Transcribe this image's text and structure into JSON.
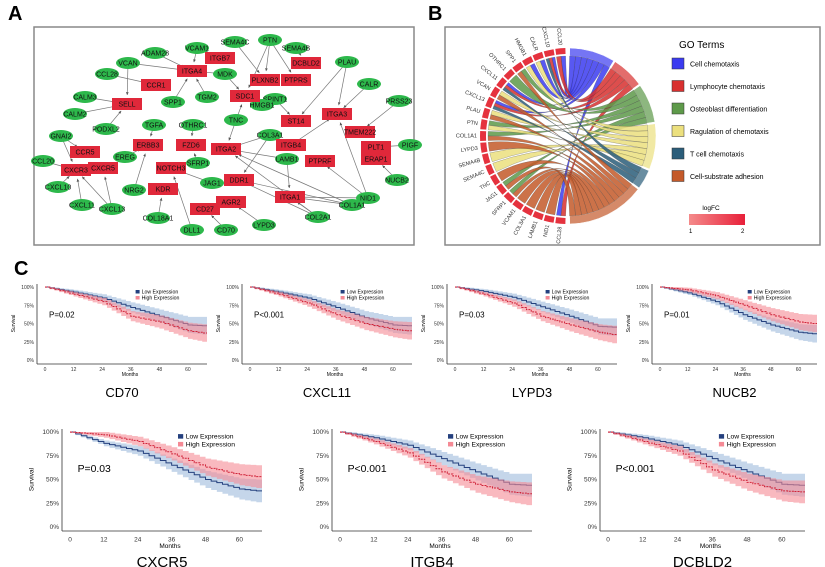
{
  "panel_labels": [
    "A",
    "B",
    "C"
  ],
  "network": {
    "colors": {
      "receptor": "#e0283a",
      "ligand": "#2db84b"
    },
    "receptors": [
      "ITGB7",
      "ITGA4",
      "DCBLD2",
      "PLXNB2",
      "PTPRS",
      "CCR1",
      "SDC1",
      "SELL",
      "ST14",
      "ITGA3",
      "TMEM222",
      "ERBB3",
      "FZD6",
      "ITGA2",
      "ITGB4",
      "PLT1",
      "CCR5",
      "ERAP1",
      "PTPRF",
      "CXCR3",
      "CXCR5",
      "NOTCH3",
      "DDR1",
      "KDR",
      "ITGA1",
      "AGR2",
      "CD27"
    ],
    "ligands": [
      "PTN",
      "SEMA4C",
      "SEMA4B",
      "VCAM1",
      "ADAM28",
      "PLAU",
      "VCAN",
      "CCL28",
      "MDK",
      "SPP1",
      "TGM2",
      "CALR",
      "SPINT1",
      "HMGB1",
      "CALM3",
      "CALM2",
      "PRSS23",
      "TNC",
      "PODXL2",
      "TGFA",
      "OTHRC1",
      "COL3A1",
      "PIGF",
      "GNAI2",
      "EREG",
      "LAMB1",
      "CCL20",
      "SFRP1",
      "JAG1",
      "NUCB2",
      "CXCL10",
      "NRG2",
      "NID1",
      "COL1A1",
      "CXCL11",
      "CXCL13",
      "COL2A1",
      "COL18A1",
      "LYPD3",
      "DLL1",
      "CD70"
    ],
    "edges": [
      [
        "ADAM28",
        "ITGA4"
      ],
      [
        "VCAM1",
        "ITGA4"
      ],
      [
        "ITGB7",
        "VCAM1"
      ],
      [
        "VCAN",
        "ITGA4"
      ],
      [
        "VCAN",
        "SELL"
      ],
      [
        "CCL28",
        "CCR1"
      ],
      [
        "MDK",
        "ITGA4"
      ],
      [
        "SPP1",
        "ITGA4"
      ],
      [
        "TGM2",
        "ITGA4"
      ],
      [
        "MDK",
        "SDC1"
      ],
      [
        "PTN",
        "SDC1"
      ],
      [
        "PTN",
        "PLXNB2"
      ],
      [
        "PTN",
        "PTPRS"
      ],
      [
        "SEMA4C",
        "PLXNB2"
      ],
      [
        "SEMA4B",
        "DCBLD2"
      ],
      [
        "HMGB1",
        "SDC1"
      ],
      [
        "TNC",
        "SDC1"
      ],
      [
        "SPINT1",
        "ST14"
      ],
      [
        "PLAU",
        "ST14"
      ],
      [
        "PLAU",
        "ITGA3"
      ],
      [
        "CALR",
        "ITGA3"
      ],
      [
        "PRSS23",
        "TMEM222"
      ],
      [
        "CALM3",
        "SELL"
      ],
      [
        "CALM2",
        "SELL"
      ],
      [
        "PODXL2",
        "SELL"
      ],
      [
        "TGFA",
        "ERBB3"
      ],
      [
        "EREG",
        "ERBB3"
      ],
      [
        "NRG2",
        "ERBB3"
      ],
      [
        "OTHRC1",
        "FZD6"
      ],
      [
        "SFRP1",
        "FZD6"
      ],
      [
        "TNC",
        "ITGA2"
      ],
      [
        "COL3A1",
        "ITGA2"
      ],
      [
        "COL3A1",
        "DDR1"
      ],
      [
        "LAMB1",
        "ITGA2"
      ],
      [
        "LAMB1",
        "ITGB4"
      ],
      [
        "LAMB1",
        "ITGA1"
      ],
      [
        "ITGB4",
        "ITGA3"
      ],
      [
        "NID1",
        "ITGA3"
      ],
      [
        "NID1",
        "PTPRF"
      ],
      [
        "NID1",
        "ITGA1"
      ],
      [
        "PIGF",
        "PLT1"
      ],
      [
        "NUCB2",
        "ERAP1"
      ],
      [
        "GNAI2",
        "CCR5"
      ],
      [
        "GNAI2",
        "CXCR3"
      ],
      [
        "CCL20",
        "CXCR3"
      ],
      [
        "CXCL10",
        "CXCR3"
      ],
      [
        "CXCL11",
        "CXCR3"
      ],
      [
        "CXCL13",
        "CXCR3"
      ],
      [
        "CXCL13",
        "CXCR5"
      ],
      [
        "JAG1",
        "NOTCH3"
      ],
      [
        "DLL1",
        "NOTCH3"
      ],
      [
        "COL18A1",
        "KDR"
      ],
      [
        "CD70",
        "CD27"
      ],
      [
        "LYPD3",
        "AGR2"
      ],
      [
        "COL1A1",
        "ITGA2"
      ],
      [
        "COL1A1",
        "ITGA1"
      ],
      [
        "COL1A1",
        "DDR1"
      ],
      [
        "COL2A1",
        "ITGA2"
      ],
      [
        "COL2A1",
        "ITGA1"
      ],
      [
        "COL2A1",
        "DDR1"
      ]
    ]
  },
  "chord": {
    "genes": [
      "CCL20",
      "CXCL10",
      "CALR",
      "HMGB1",
      "SPP1",
      "OTHRC1",
      "CXCL11",
      "VCAN",
      "CXCL13",
      "PLAU",
      "PTN",
      "COL1A1",
      "LYPD3",
      "SEMA4B",
      "SEMA4C",
      "TNC",
      "JAG1",
      "SFRP1",
      "VCAM1",
      "COL3A1",
      "LAMB1",
      "NID1",
      "CCL28"
    ],
    "legend_title": "GO Terms",
    "terms": [
      {
        "name": "Cell chemotaxis",
        "color": "#3b3bf0",
        "genes": [
          "CCL20",
          "CXCL10",
          "CALR",
          "HMGB1",
          "CXCL11",
          "CXCL13",
          "CCL28"
        ]
      },
      {
        "name": "Lymphocyte chemotaxis",
        "color": "#d8302f",
        "genes": [
          "CCL20",
          "CXCL10",
          "CXCL11",
          "CXCL13",
          "CCL28"
        ]
      },
      {
        "name": "Osteoblast differentiation",
        "color": "#5e9a4a",
        "genes": [
          "SPP1",
          "OTHRC1",
          "PTN",
          "COL1A1",
          "JAG1",
          "SFRP1"
        ]
      },
      {
        "name": "Ragulation of chemotaxis",
        "color": "#ece07e",
        "genes": [
          "CALR",
          "HMGB1",
          "VCAN",
          "PLAU",
          "SEMA4B",
          "SEMA4C",
          "PTN"
        ]
      },
      {
        "name": "T cell chemotaxis",
        "color": "#2b5d7a",
        "genes": [
          "CXCL10",
          "CXCL11",
          "CXCL13"
        ]
      },
      {
        "name": "Cell-substrate adhesion",
        "color": "#c45a2a",
        "genes": [
          "SPP1",
          "VCAN",
          "PLAU",
          "COL1A1",
          "LYPD3",
          "TNC",
          "SFRP1",
          "VCAM1",
          "COL3A1",
          "LAMB1",
          "NID1",
          "JAG1"
        ]
      }
    ],
    "logfc": {
      "title": "logFC",
      "min": "1",
      "max": "2",
      "low_color": "#f48a8a",
      "high_color": "#e8203a"
    }
  },
  "km": {
    "y_label": "Survival",
    "x_label": "Months",
    "y_ticks": [
      "0%",
      "25%",
      "50%",
      "75%",
      "100%"
    ],
    "x_ticks": [
      "0",
      "12",
      "24",
      "36",
      "48",
      "60"
    ],
    "legend": [
      "Low Expression",
      "High Expression"
    ],
    "colors": {
      "low": "#24407e",
      "low_band": "#9ebbdc",
      "high": "#d0243a",
      "high_band": "#f58a95"
    },
    "months": [
      0,
      12,
      24,
      36,
      48,
      60,
      66
    ]
  },
  "chart_data": [
    {
      "type": "line",
      "title": "CD70",
      "p_value": "P=0.02",
      "series": [
        {
          "name": "Low Expression",
          "values": [
            1,
            0.93,
            0.85,
            0.72,
            0.6,
            0.48,
            0.47
          ]
        },
        {
          "name": "High Expression",
          "values": [
            1,
            0.9,
            0.8,
            0.6,
            0.52,
            0.4,
            0.37
          ]
        }
      ]
    },
    {
      "type": "line",
      "title": "CXCL11",
      "p_value": "P<0.001",
      "series": [
        {
          "name": "Low Expression",
          "values": [
            1,
            0.93,
            0.85,
            0.72,
            0.58,
            0.48,
            0.47
          ]
        },
        {
          "name": "High Expression",
          "values": [
            1,
            0.9,
            0.78,
            0.62,
            0.5,
            0.42,
            0.4
          ]
        }
      ]
    },
    {
      "type": "line",
      "title": "LYPD3",
      "p_value": "P=0.03",
      "series": [
        {
          "name": "Low Expression",
          "values": [
            1,
            0.94,
            0.86,
            0.73,
            0.6,
            0.46,
            0.45
          ]
        },
        {
          "name": "High Expression",
          "values": [
            1,
            0.9,
            0.78,
            0.6,
            0.48,
            0.38,
            0.35
          ]
        }
      ]
    },
    {
      "type": "line",
      "title": "NUCB2",
      "p_value": "P=0.01",
      "series": [
        {
          "name": "Low Expression",
          "values": [
            1,
            0.92,
            0.8,
            0.62,
            0.48,
            0.38,
            0.36
          ]
        },
        {
          "name": "High Expression",
          "values": [
            1,
            0.96,
            0.88,
            0.75,
            0.62,
            0.52,
            0.5
          ]
        }
      ]
    },
    {
      "type": "line",
      "title": "CXCR5",
      "p_value": "P=0.03",
      "series": [
        {
          "name": "Low Expression",
          "values": [
            1,
            0.88,
            0.8,
            0.65,
            0.5,
            0.4,
            0.38
          ]
        },
        {
          "name": "High Expression",
          "values": [
            1,
            0.97,
            0.9,
            0.77,
            0.63,
            0.55,
            0.53
          ]
        }
      ]
    },
    {
      "type": "line",
      "title": "ITGB4",
      "p_value": "P<0.001",
      "series": [
        {
          "name": "Low Expression",
          "values": [
            1,
            0.94,
            0.86,
            0.72,
            0.58,
            0.45,
            0.44
          ]
        },
        {
          "name": "High Expression",
          "values": [
            1,
            0.9,
            0.78,
            0.58,
            0.45,
            0.37,
            0.35
          ]
        }
      ]
    },
    {
      "type": "line",
      "title": "DCBLD2",
      "p_value": "P<0.001",
      "series": [
        {
          "name": "Low Expression",
          "values": [
            1,
            0.94,
            0.86,
            0.72,
            0.58,
            0.45,
            0.44
          ]
        },
        {
          "name": "High Expression",
          "values": [
            1,
            0.9,
            0.8,
            0.6,
            0.47,
            0.38,
            0.37
          ]
        }
      ]
    }
  ]
}
